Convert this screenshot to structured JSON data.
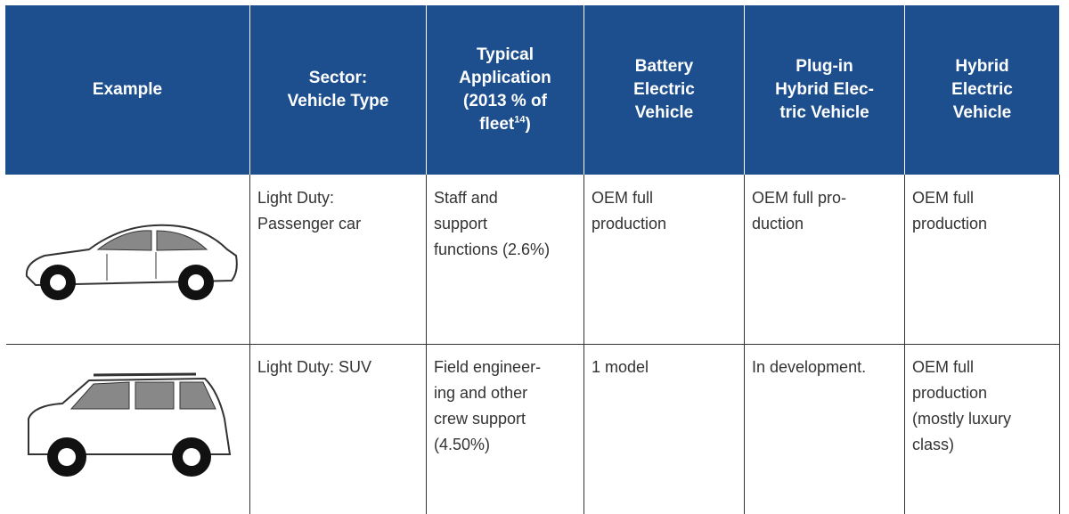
{
  "header": {
    "columns": [
      {
        "lines": [
          "Example"
        ]
      },
      {
        "lines": [
          "Sector:",
          "Vehicle Type"
        ]
      },
      {
        "lines": [
          "Typical",
          "Application",
          "(2013 % of"
        ],
        "last_line": {
          "text": "fleet",
          "footnote": "14",
          "tail": ")"
        }
      },
      {
        "lines": [
          "Battery",
          "Electric",
          "Vehicle"
        ]
      },
      {
        "lines": [
          "Plug-in",
          "Hybrid Elec-",
          "tric Vehicle"
        ]
      },
      {
        "lines": [
          "Hybrid",
          "Electric",
          "Vehicle"
        ]
      }
    ]
  },
  "table": {
    "rows": [
      [
        [
          "Light Duty:",
          "Passenger car"
        ],
        [
          "Staff and",
          "support",
          "functions (2.6%)"
        ],
        [
          "OEM full",
          "production"
        ],
        [
          "OEM full pro-",
          "duction"
        ],
        [
          "OEM full",
          "production"
        ]
      ],
      [
        [
          "Light Duty: SUV"
        ],
        [
          "Field engineer-",
          "ing and other",
          "crew support",
          "(4.50%)"
        ],
        [
          "1 model"
        ],
        [
          "In development."
        ],
        [
          "OEM full",
          "production",
          "(mostly luxury",
          "class)"
        ]
      ]
    ]
  }
}
